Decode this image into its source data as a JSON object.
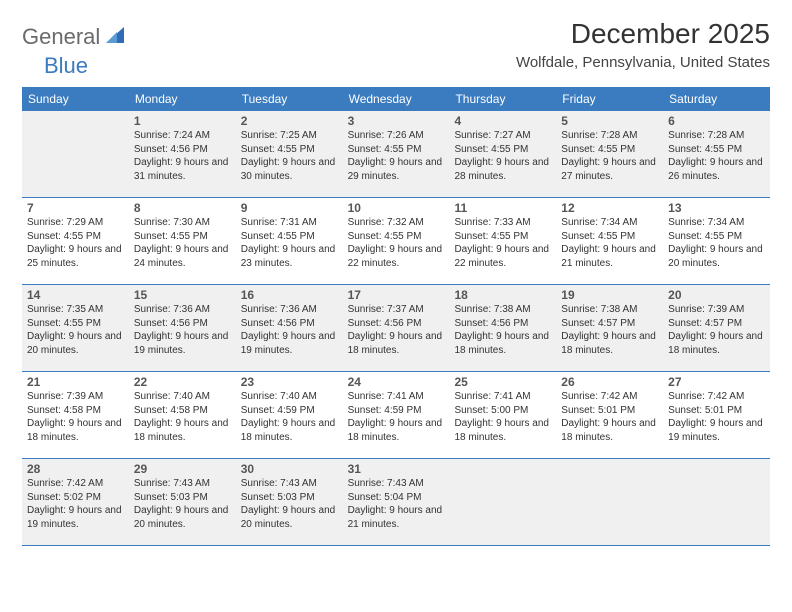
{
  "brand": {
    "part1": "General",
    "part2": "Blue"
  },
  "title": "December 2025",
  "location": "Wolfdale, Pennsylvania, United States",
  "colors": {
    "header_bg": "#3b7bbf",
    "header_text": "#ffffff",
    "shaded_cell": "#f0f0f0",
    "border": "#3b7bbf",
    "logo_gray": "#6b6b6b",
    "logo_blue": "#3b7bbf"
  },
  "day_headers": [
    "Sunday",
    "Monday",
    "Tuesday",
    "Wednesday",
    "Thursday",
    "Friday",
    "Saturday"
  ],
  "weeks": [
    [
      {
        "num": "",
        "sunrise": "",
        "sunset": "",
        "daylight": ""
      },
      {
        "num": "1",
        "sunrise": "Sunrise: 7:24 AM",
        "sunset": "Sunset: 4:56 PM",
        "daylight": "Daylight: 9 hours and 31 minutes."
      },
      {
        "num": "2",
        "sunrise": "Sunrise: 7:25 AM",
        "sunset": "Sunset: 4:55 PM",
        "daylight": "Daylight: 9 hours and 30 minutes."
      },
      {
        "num": "3",
        "sunrise": "Sunrise: 7:26 AM",
        "sunset": "Sunset: 4:55 PM",
        "daylight": "Daylight: 9 hours and 29 minutes."
      },
      {
        "num": "4",
        "sunrise": "Sunrise: 7:27 AM",
        "sunset": "Sunset: 4:55 PM",
        "daylight": "Daylight: 9 hours and 28 minutes."
      },
      {
        "num": "5",
        "sunrise": "Sunrise: 7:28 AM",
        "sunset": "Sunset: 4:55 PM",
        "daylight": "Daylight: 9 hours and 27 minutes."
      },
      {
        "num": "6",
        "sunrise": "Sunrise: 7:28 AM",
        "sunset": "Sunset: 4:55 PM",
        "daylight": "Daylight: 9 hours and 26 minutes."
      }
    ],
    [
      {
        "num": "7",
        "sunrise": "Sunrise: 7:29 AM",
        "sunset": "Sunset: 4:55 PM",
        "daylight": "Daylight: 9 hours and 25 minutes."
      },
      {
        "num": "8",
        "sunrise": "Sunrise: 7:30 AM",
        "sunset": "Sunset: 4:55 PM",
        "daylight": "Daylight: 9 hours and 24 minutes."
      },
      {
        "num": "9",
        "sunrise": "Sunrise: 7:31 AM",
        "sunset": "Sunset: 4:55 PM",
        "daylight": "Daylight: 9 hours and 23 minutes."
      },
      {
        "num": "10",
        "sunrise": "Sunrise: 7:32 AM",
        "sunset": "Sunset: 4:55 PM",
        "daylight": "Daylight: 9 hours and 22 minutes."
      },
      {
        "num": "11",
        "sunrise": "Sunrise: 7:33 AM",
        "sunset": "Sunset: 4:55 PM",
        "daylight": "Daylight: 9 hours and 22 minutes."
      },
      {
        "num": "12",
        "sunrise": "Sunrise: 7:34 AM",
        "sunset": "Sunset: 4:55 PM",
        "daylight": "Daylight: 9 hours and 21 minutes."
      },
      {
        "num": "13",
        "sunrise": "Sunrise: 7:34 AM",
        "sunset": "Sunset: 4:55 PM",
        "daylight": "Daylight: 9 hours and 20 minutes."
      }
    ],
    [
      {
        "num": "14",
        "sunrise": "Sunrise: 7:35 AM",
        "sunset": "Sunset: 4:55 PM",
        "daylight": "Daylight: 9 hours and 20 minutes."
      },
      {
        "num": "15",
        "sunrise": "Sunrise: 7:36 AM",
        "sunset": "Sunset: 4:56 PM",
        "daylight": "Daylight: 9 hours and 19 minutes."
      },
      {
        "num": "16",
        "sunrise": "Sunrise: 7:36 AM",
        "sunset": "Sunset: 4:56 PM",
        "daylight": "Daylight: 9 hours and 19 minutes."
      },
      {
        "num": "17",
        "sunrise": "Sunrise: 7:37 AM",
        "sunset": "Sunset: 4:56 PM",
        "daylight": "Daylight: 9 hours and 18 minutes."
      },
      {
        "num": "18",
        "sunrise": "Sunrise: 7:38 AM",
        "sunset": "Sunset: 4:56 PM",
        "daylight": "Daylight: 9 hours and 18 minutes."
      },
      {
        "num": "19",
        "sunrise": "Sunrise: 7:38 AM",
        "sunset": "Sunset: 4:57 PM",
        "daylight": "Daylight: 9 hours and 18 minutes."
      },
      {
        "num": "20",
        "sunrise": "Sunrise: 7:39 AM",
        "sunset": "Sunset: 4:57 PM",
        "daylight": "Daylight: 9 hours and 18 minutes."
      }
    ],
    [
      {
        "num": "21",
        "sunrise": "Sunrise: 7:39 AM",
        "sunset": "Sunset: 4:58 PM",
        "daylight": "Daylight: 9 hours and 18 minutes."
      },
      {
        "num": "22",
        "sunrise": "Sunrise: 7:40 AM",
        "sunset": "Sunset: 4:58 PM",
        "daylight": "Daylight: 9 hours and 18 minutes."
      },
      {
        "num": "23",
        "sunrise": "Sunrise: 7:40 AM",
        "sunset": "Sunset: 4:59 PM",
        "daylight": "Daylight: 9 hours and 18 minutes."
      },
      {
        "num": "24",
        "sunrise": "Sunrise: 7:41 AM",
        "sunset": "Sunset: 4:59 PM",
        "daylight": "Daylight: 9 hours and 18 minutes."
      },
      {
        "num": "25",
        "sunrise": "Sunrise: 7:41 AM",
        "sunset": "Sunset: 5:00 PM",
        "daylight": "Daylight: 9 hours and 18 minutes."
      },
      {
        "num": "26",
        "sunrise": "Sunrise: 7:42 AM",
        "sunset": "Sunset: 5:01 PM",
        "daylight": "Daylight: 9 hours and 18 minutes."
      },
      {
        "num": "27",
        "sunrise": "Sunrise: 7:42 AM",
        "sunset": "Sunset: 5:01 PM",
        "daylight": "Daylight: 9 hours and 19 minutes."
      }
    ],
    [
      {
        "num": "28",
        "sunrise": "Sunrise: 7:42 AM",
        "sunset": "Sunset: 5:02 PM",
        "daylight": "Daylight: 9 hours and 19 minutes."
      },
      {
        "num": "29",
        "sunrise": "Sunrise: 7:43 AM",
        "sunset": "Sunset: 5:03 PM",
        "daylight": "Daylight: 9 hours and 20 minutes."
      },
      {
        "num": "30",
        "sunrise": "Sunrise: 7:43 AM",
        "sunset": "Sunset: 5:03 PM",
        "daylight": "Daylight: 9 hours and 20 minutes."
      },
      {
        "num": "31",
        "sunrise": "Sunrise: 7:43 AM",
        "sunset": "Sunset: 5:04 PM",
        "daylight": "Daylight: 9 hours and 21 minutes."
      },
      {
        "num": "",
        "sunrise": "",
        "sunset": "",
        "daylight": ""
      },
      {
        "num": "",
        "sunrise": "",
        "sunset": "",
        "daylight": ""
      },
      {
        "num": "",
        "sunrise": "",
        "sunset": "",
        "daylight": ""
      }
    ]
  ]
}
